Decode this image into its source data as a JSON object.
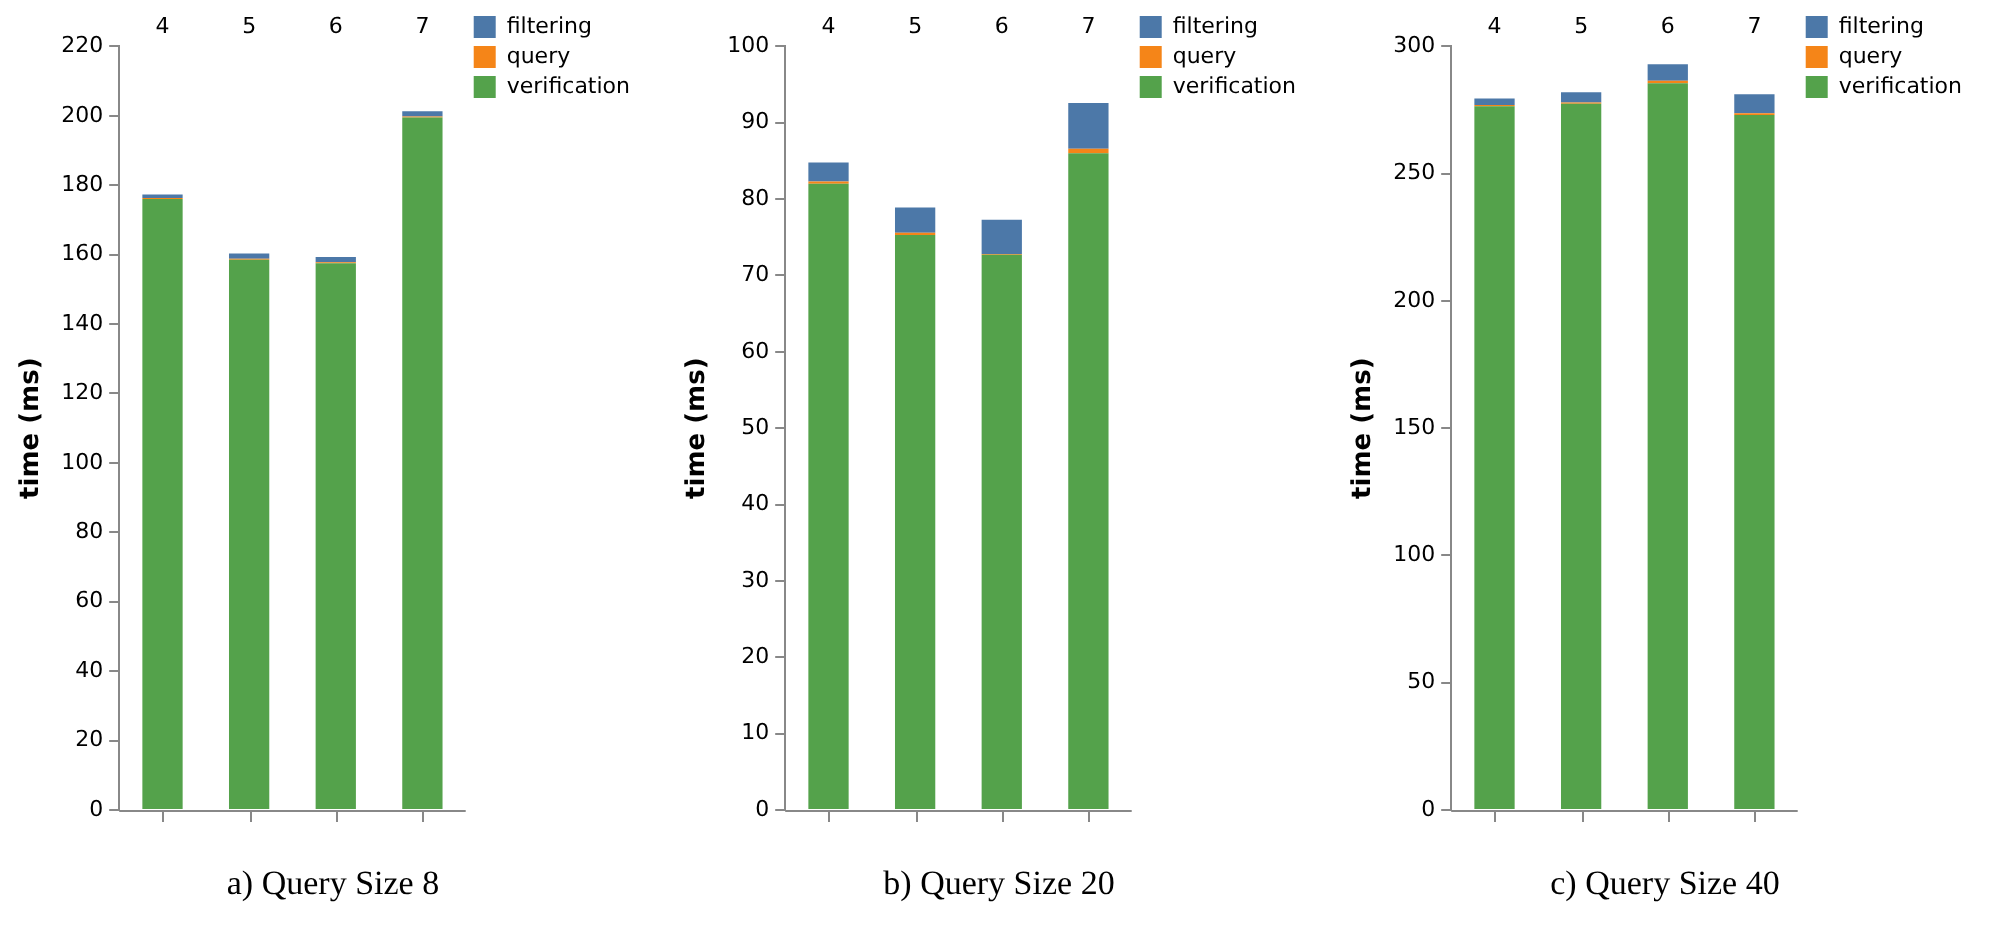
{
  "chart_data": [
    {
      "type": "bar",
      "stacked": true,
      "categories": [
        "4",
        "5",
        "6",
        "7"
      ],
      "ylabel": "time (ms)",
      "ylim": [
        0,
        220
      ],
      "yticks": [
        0,
        20,
        40,
        60,
        80,
        100,
        120,
        140,
        160,
        180,
        200,
        220
      ],
      "grid": false,
      "legend": "top right",
      "annotations": [
        "a) Query Size 8"
      ],
      "series": [
        {
          "name": "verification",
          "color": "#54a24b",
          "values": [
            176,
            158.5,
            157.5,
            199.5
          ]
        },
        {
          "name": "query",
          "color": "#f58518",
          "values": [
            0.3,
            0.3,
            0.3,
            0.3
          ]
        },
        {
          "name": "filtering",
          "color": "#4c78a8",
          "values": [
            1,
            1.5,
            1.5,
            1.5
          ]
        }
      ]
    },
    {
      "type": "bar",
      "stacked": true,
      "categories": [
        "4",
        "5",
        "6",
        "7"
      ],
      "ylabel": "time (ms)",
      "ylim": [
        0,
        100
      ],
      "yticks": [
        0,
        10,
        20,
        30,
        40,
        50,
        60,
        70,
        80,
        90,
        100
      ],
      "grid": false,
      "legend": "top right",
      "annotations": [
        "b) Query Size 20"
      ],
      "series": [
        {
          "name": "verification",
          "color": "#54a24b",
          "values": [
            82,
            75.3,
            72.7,
            86
          ]
        },
        {
          "name": "query",
          "color": "#f58518",
          "values": [
            0.3,
            0.3,
            0.1,
            0.6
          ]
        },
        {
          "name": "filtering",
          "color": "#4c78a8",
          "values": [
            2.5,
            3.3,
            4.5,
            6
          ]
        }
      ]
    },
    {
      "type": "bar",
      "stacked": true,
      "categories": [
        "4",
        "5",
        "6",
        "7"
      ],
      "ylabel": "time (ms)",
      "ylim": [
        0,
        300
      ],
      "yticks": [
        0,
        50,
        100,
        150,
        200,
        250,
        300
      ],
      "grid": false,
      "legend": "top right",
      "annotations": [
        "c) Query Size 40"
      ],
      "series": [
        {
          "name": "verification",
          "color": "#54a24b",
          "values": [
            276.5,
            277.5,
            285.5,
            273
          ]
        },
        {
          "name": "query",
          "color": "#f58518",
          "values": [
            0.5,
            0.5,
            1,
            0.7
          ]
        },
        {
          "name": "filtering",
          "color": "#4c78a8",
          "values": [
            2.5,
            4,
            6.5,
            7.5
          ]
        }
      ]
    }
  ]
}
